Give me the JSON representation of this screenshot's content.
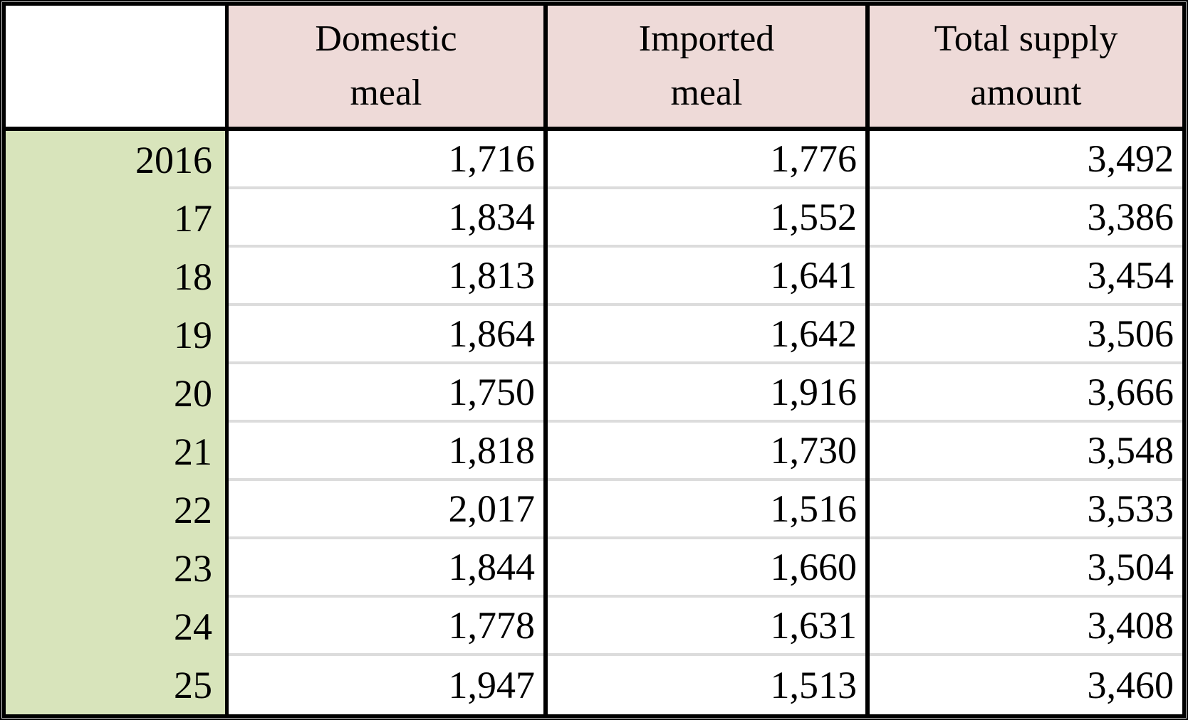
{
  "header": {
    "corner": "",
    "domestic": "Domestic\nmeal",
    "imported": "Imported\nmeal",
    "total": "Total supply\namount"
  },
  "rows": [
    {
      "year": "2016",
      "domestic": "1,716",
      "imported": "1,776",
      "total": "3,492"
    },
    {
      "year": "17",
      "domestic": "1,834",
      "imported": "1,552",
      "total": "3,386"
    },
    {
      "year": "18",
      "domestic": "1,813",
      "imported": "1,641",
      "total": "3,454"
    },
    {
      "year": "19",
      "domestic": "1,864",
      "imported": "1,642",
      "total": "3,506"
    },
    {
      "year": "20",
      "domestic": "1,750",
      "imported": "1,916",
      "total": "3,666"
    },
    {
      "year": "21",
      "domestic": "1,818",
      "imported": "1,730",
      "total": "3,548"
    },
    {
      "year": "22",
      "domestic": "2,017",
      "imported": "1,516",
      "total": "3,533"
    },
    {
      "year": "23",
      "domestic": "1,844",
      "imported": "1,660",
      "total": "3,504"
    },
    {
      "year": "24",
      "domestic": "1,778",
      "imported": "1,631",
      "total": "3,408"
    },
    {
      "year": "25",
      "domestic": "1,947",
      "imported": "1,513",
      "total": "3,460"
    }
  ],
  "colors": {
    "header_bg": "#EEDAD8",
    "year_bg": "#D8E4BB",
    "row_divider": "#DCDCDC",
    "grid_line": "#000000"
  },
  "chart_data": {
    "type": "table",
    "categories": [
      "2016",
      "17",
      "18",
      "19",
      "20",
      "21",
      "22",
      "23",
      "24",
      "25"
    ],
    "series": [
      {
        "name": "Domestic meal",
        "values": [
          1716,
          1834,
          1813,
          1864,
          1750,
          1818,
          2017,
          1844,
          1778,
          1947
        ]
      },
      {
        "name": "Imported meal",
        "values": [
          1776,
          1552,
          1641,
          1642,
          1916,
          1730,
          1516,
          1660,
          1631,
          1513
        ]
      },
      {
        "name": "Total supply amount",
        "values": [
          3492,
          3386,
          3454,
          3506,
          3666,
          3548,
          3533,
          3504,
          3408,
          3460
        ]
      }
    ],
    "title": "",
    "legend_position": "none",
    "grid": true
  }
}
